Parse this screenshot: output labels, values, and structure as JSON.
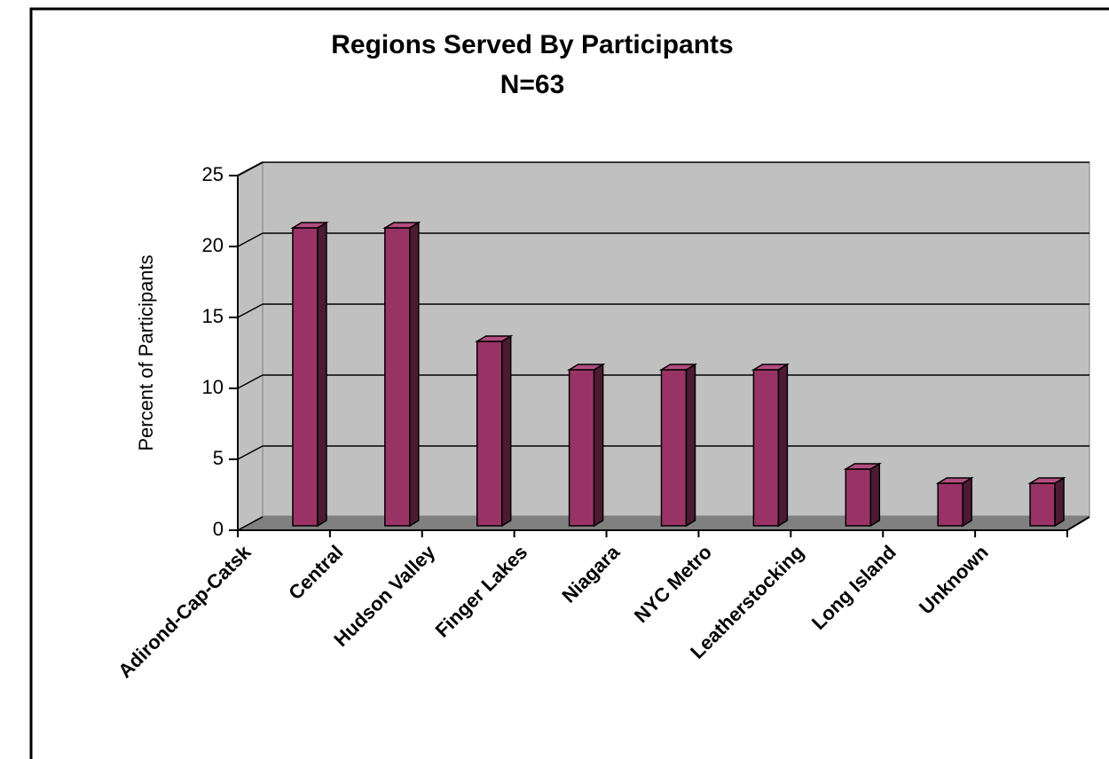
{
  "chart_data": {
    "type": "bar3d",
    "title": "Regions Served By Participants",
    "subtitle": "N=63",
    "y_label": "Percent of Participants",
    "categories": [
      "Adirond-Cap-Catsk",
      "Central",
      "Hudson Valley",
      "Finger Lakes",
      "Niagara",
      "NYC Metro",
      "Leatherstocking",
      "Long Island",
      "Unknown"
    ],
    "values": [
      21,
      21,
      13,
      11,
      11,
      11,
      4,
      3,
      3
    ],
    "color": "#993366",
    "ylim": [
      0,
      25
    ],
    "yticks": [
      0,
      5,
      10,
      15,
      20,
      25
    ],
    "grid": true
  }
}
